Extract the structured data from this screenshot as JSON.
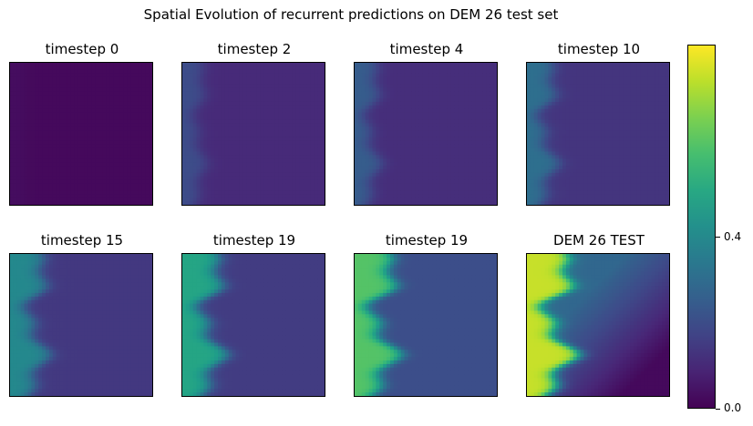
{
  "chart_data": {
    "type": "heatmap",
    "title": "Spatial Evolution of recurrent predictions on DEM 26 test set",
    "colormap": "viridis",
    "colorbar": {
      "ticks": [
        0.0,
        0.4
      ],
      "tick_labels": [
        "0.0",
        "0.4"
      ],
      "range": [
        0,
        0.85
      ]
    },
    "panels": [
      {
        "title": "timestep 0",
        "left_value": 0.03,
        "right_value": 0.02,
        "front_amp": 0.0,
        "front_width": 0.1,
        "diag": 0.0
      },
      {
        "title": "timestep 2",
        "left_value": 0.2,
        "right_value": 0.1,
        "front_amp": 0.03,
        "front_width": 0.12,
        "diag": 0.0
      },
      {
        "title": "timestep 4",
        "left_value": 0.25,
        "right_value": 0.11,
        "front_amp": 0.04,
        "front_width": 0.12,
        "diag": 0.0
      },
      {
        "title": "timestep 10",
        "left_value": 0.31,
        "right_value": 0.13,
        "front_amp": 0.05,
        "front_width": 0.14,
        "diag": 0.0
      },
      {
        "title": "timestep 15",
        "left_value": 0.4,
        "right_value": 0.14,
        "front_amp": 0.06,
        "front_width": 0.18,
        "diag": 0.0
      },
      {
        "title": "timestep 19",
        "left_value": 0.5,
        "right_value": 0.15,
        "front_amp": 0.07,
        "front_width": 0.2,
        "diag": 0.0
      },
      {
        "title": "timestep 19",
        "left_value": 0.62,
        "right_value": 0.2,
        "front_amp": 0.08,
        "front_width": 0.2,
        "diag": 0.0
      },
      {
        "title": "DEM 26 TEST",
        "left_value": 0.78,
        "right_value": 0.02,
        "front_amp": 0.09,
        "front_width": 0.22,
        "diag": 1.0
      }
    ]
  }
}
